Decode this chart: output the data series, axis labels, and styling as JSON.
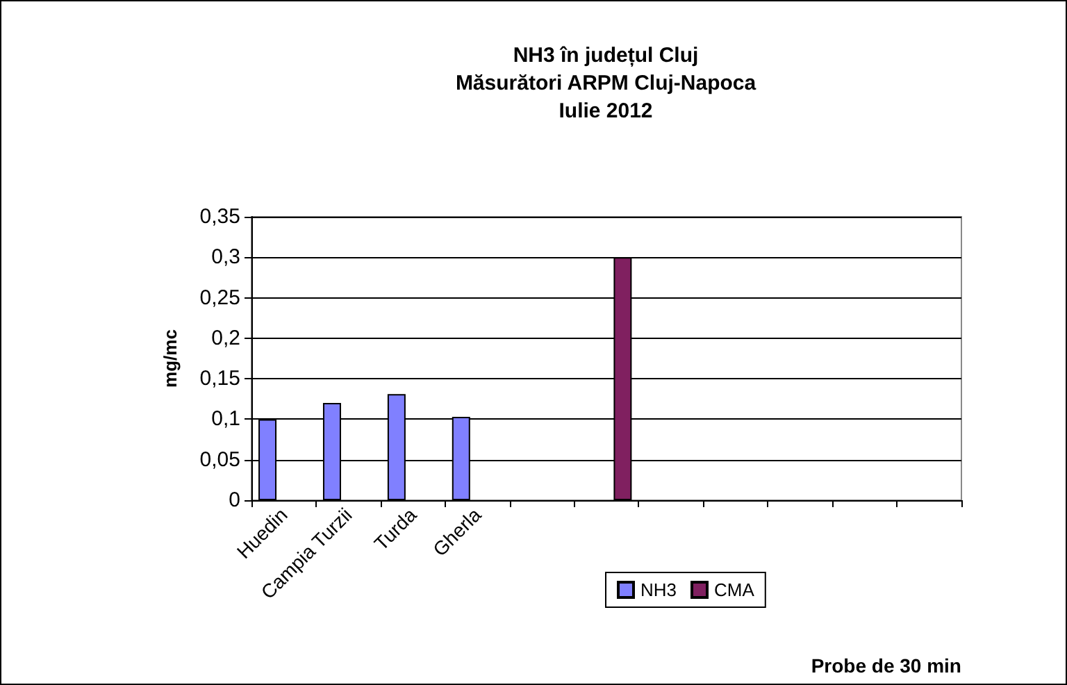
{
  "chart_data": {
    "type": "bar",
    "title": "NH3 în județul Cluj\nMăsurători ARPM Cluj-Napoca\nIulie 2012",
    "xlabel": "Probe de 30 min",
    "ylabel": "mg/mc",
    "categories": [
      "Huedin",
      "Campia Turzii",
      "Turda",
      "Gherla",
      null,
      null,
      null,
      null,
      null,
      null,
      null
    ],
    "series": [
      {
        "name": "NH3",
        "color": "#8080ff",
        "values": [
          0.1,
          0.12,
          0.131,
          0.103,
          null,
          null,
          null,
          null,
          null,
          null,
          null
        ]
      },
      {
        "name": "CMA",
        "color": "#802060",
        "values": [
          null,
          null,
          null,
          null,
          null,
          0.3,
          null,
          null,
          null,
          null,
          null
        ]
      }
    ],
    "ylim": [
      0,
      0.35
    ],
    "yticks": [
      {
        "value": 0,
        "label": "0"
      },
      {
        "value": 0.05,
        "label": "0,05"
      },
      {
        "value": 0.1,
        "label": "0,1"
      },
      {
        "value": 0.15,
        "label": "0,15"
      },
      {
        "value": 0.2,
        "label": "0,2"
      },
      {
        "value": 0.25,
        "label": "0,25"
      },
      {
        "value": 0.3,
        "label": "0,3"
      },
      {
        "value": 0.35,
        "label": "0,35"
      }
    ],
    "grid": "y",
    "legend": "bottom"
  }
}
